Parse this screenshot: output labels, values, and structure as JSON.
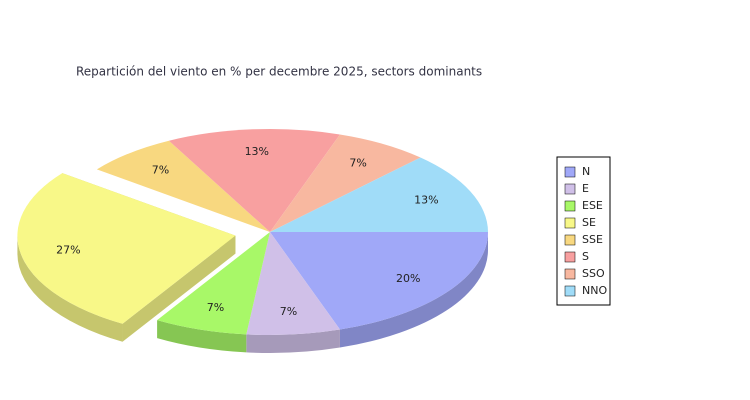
{
  "chart_data": {
    "type": "pie",
    "title": "Repartición del viento en % per decembre 2025, sectors dominants",
    "categories": [
      "N",
      "E",
      "ESE",
      "SE",
      "SSE",
      "S",
      "SSO",
      "NNO"
    ],
    "values": [
      20,
      7,
      7,
      27,
      7,
      13,
      7,
      13
    ],
    "value_labels": [
      "20%",
      "7%",
      "7%",
      "27%",
      "7%",
      "13%",
      "7%",
      "13%"
    ],
    "colors": [
      "#a0a8f8",
      "#d0c0e8",
      "#a8f868",
      "#f8f888",
      "#f8d880",
      "#f8a0a0",
      "#f8b8a0",
      "#a0dcf8"
    ],
    "exploded": "SE",
    "legend": "right"
  }
}
